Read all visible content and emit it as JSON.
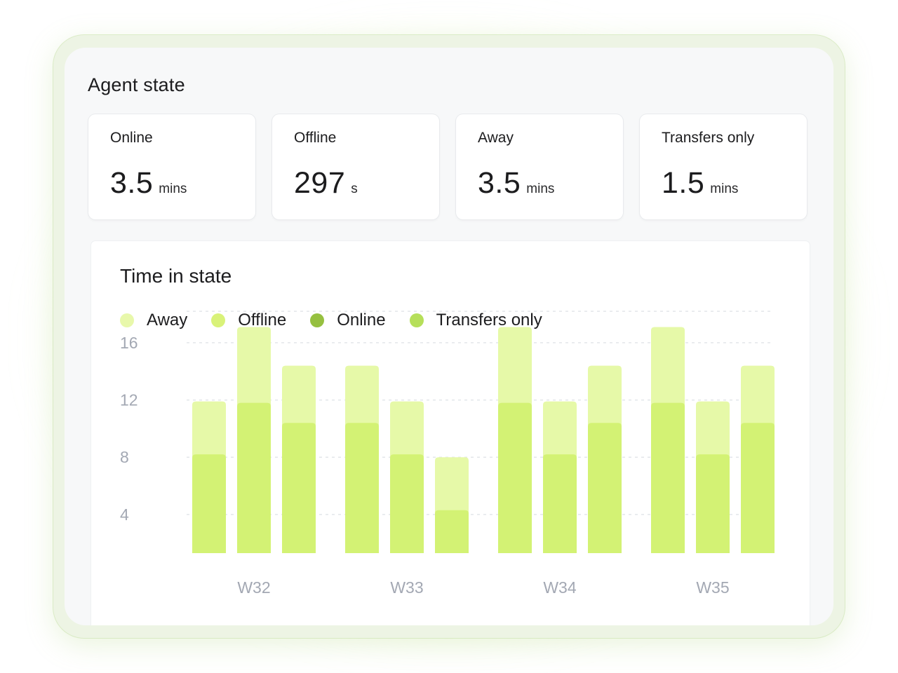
{
  "card": {
    "title": "Agent state"
  },
  "stats": [
    {
      "label": "Online",
      "value": "3.5",
      "unit": "mins"
    },
    {
      "label": "Offline",
      "value": "297",
      "unit": "s"
    },
    {
      "label": "Away",
      "value": "3.5",
      "unit": "mins"
    },
    {
      "label": "Transfers only",
      "value": "1.5",
      "unit": "mins"
    }
  ],
  "colors": {
    "away": "#e8f8ab",
    "offline": "#d9f279",
    "online": "#96c040",
    "transfers": "#b6df5a",
    "bar_top": "#e6f9a8",
    "bar_bottom": "#d3f274",
    "axis_text": "#a3a8b3",
    "grid": "#e3e6ea"
  },
  "chart_data": {
    "type": "bar",
    "title": "Time in state",
    "legend": [
      {
        "name": "Away",
        "color": "#e8f8ab"
      },
      {
        "name": "Offline",
        "color": "#d9f279"
      },
      {
        "name": "Online",
        "color": "#96c040"
      },
      {
        "name": "Transfers only",
        "color": "#b6df5a"
      }
    ],
    "legend_position": "top-left",
    "categories": [
      "W32",
      "W33",
      "W34",
      "W35"
    ],
    "yticks": [
      4,
      8,
      12,
      16
    ],
    "ylim": [
      1.3,
      18.2
    ],
    "grid": true,
    "groups": [
      {
        "week": "W32",
        "bars": [
          {
            "lower": 8.2,
            "total": 11.9
          },
          {
            "lower": 11.8,
            "total": 17.1
          },
          {
            "lower": 10.4,
            "total": 14.4
          }
        ]
      },
      {
        "week": "W33",
        "bars": [
          {
            "lower": 10.4,
            "total": 14.4
          },
          {
            "lower": 8.2,
            "total": 11.9
          },
          {
            "lower": 4.3,
            "total": 8.0
          }
        ]
      },
      {
        "week": "W34",
        "bars": [
          {
            "lower": 11.8,
            "total": 17.1
          },
          {
            "lower": 8.2,
            "total": 11.9
          },
          {
            "lower": 10.4,
            "total": 14.4
          }
        ]
      },
      {
        "week": "W35",
        "bars": [
          {
            "lower": 11.8,
            "total": 17.1
          },
          {
            "lower": 8.2,
            "total": 11.9
          },
          {
            "lower": 10.4,
            "total": 14.4
          }
        ]
      }
    ]
  }
}
